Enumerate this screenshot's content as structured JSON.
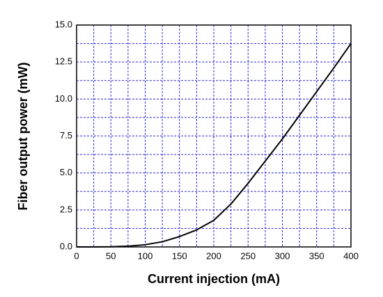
{
  "chart_data": {
    "type": "line",
    "x_label": "Current injection (mA)",
    "y_label": "Fiber output power (mW)",
    "x": [
      0,
      25,
      50,
      75,
      100,
      125,
      150,
      175,
      200,
      225,
      250,
      275,
      300,
      325,
      350,
      375,
      400
    ],
    "series": [
      {
        "color": "#000000",
        "values": [
          0,
          0,
          0.01,
          0.05,
          0.15,
          0.35,
          0.7,
          1.15,
          1.8,
          2.9,
          4.3,
          5.8,
          7.3,
          8.9,
          10.5,
          12.1,
          13.75
        ]
      }
    ],
    "xlim": [
      0,
      400
    ],
    "xticks": [
      0,
      50,
      100,
      150,
      200,
      250,
      300,
      350,
      400
    ],
    "ylim": [
      0,
      15
    ],
    "yticks": [
      {
        "value": 0,
        "label": "0.0"
      },
      2.5,
      {
        "value": 5,
        "label": "5.0"
      },
      7.5,
      {
        "value": 10,
        "label": "10.0"
      },
      12.5,
      {
        "value": 15,
        "label": "15.0"
      }
    ],
    "grid": true,
    "grid_color": "#2b2bd6"
  }
}
